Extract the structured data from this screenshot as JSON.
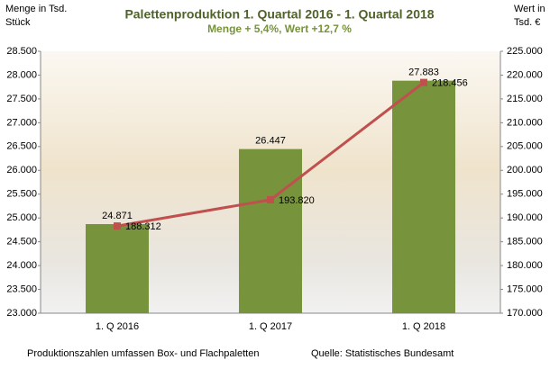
{
  "chart_data": {
    "type": "bar",
    "title": "Palettenproduktion 1. Quartal 2016 -  1. Quartal 2018",
    "subtitle": "Menge + 5,4%, Wert +12,7 %",
    "ylabel": [
      "Menge in Tsd.",
      "Stück"
    ],
    "y2label": [
      "Wert in",
      "Tsd. €"
    ],
    "categories": [
      "1. Q 2016",
      "1. Q 2017",
      "1. Q 2018"
    ],
    "series": [
      {
        "name": "Menge",
        "type": "bar",
        "color": "#77933c",
        "values": [
          24871,
          26447,
          27883
        ],
        "value_labels": [
          "24.871",
          "26.447",
          "27.883"
        ]
      },
      {
        "name": "Wert",
        "type": "line",
        "axis": "y2",
        "color": "#c0504d",
        "values": [
          188312,
          193820,
          218456
        ],
        "value_labels": [
          "188.312",
          "193.820",
          "218.456"
        ]
      }
    ],
    "ylim": [
      23000,
      28500
    ],
    "yticks": [
      {
        "value": 23000,
        "label": "23.000"
      },
      {
        "value": 23500,
        "label": "23.500"
      },
      {
        "value": 24000,
        "label": "24.000"
      },
      {
        "value": 24500,
        "label": "24.500"
      },
      {
        "value": 25000,
        "label": "25.000"
      },
      {
        "value": 25500,
        "label": "25.500"
      },
      {
        "value": 26000,
        "label": "26.000"
      },
      {
        "value": 26500,
        "label": "26.500"
      },
      {
        "value": 27000,
        "label": "27.000"
      },
      {
        "value": 27500,
        "label": "27.500"
      },
      {
        "value": 28000,
        "label": "28.000"
      },
      {
        "value": 28500,
        "label": "28.500"
      }
    ],
    "y2lim": [
      170000,
      225000
    ],
    "y2ticks": [
      {
        "value": 170000,
        "label": "170.000"
      },
      {
        "value": 175000,
        "label": "175.000"
      },
      {
        "value": 180000,
        "label": "180.000"
      },
      {
        "value": 185000,
        "label": "185.000"
      },
      {
        "value": 190000,
        "label": "190.000"
      },
      {
        "value": 195000,
        "label": "195.000"
      },
      {
        "value": 200000,
        "label": "200.000"
      },
      {
        "value": 205000,
        "label": "205.000"
      },
      {
        "value": 210000,
        "label": "210.000"
      },
      {
        "value": 215000,
        "label": "215.000"
      },
      {
        "value": 220000,
        "label": "220.000"
      },
      {
        "value": 225000,
        "label": "225.000"
      }
    ],
    "footnote": "Produktionszahlen umfassen Box- und Flachpaletten",
    "source": "Quelle: Statistisches Bundesamt"
  }
}
